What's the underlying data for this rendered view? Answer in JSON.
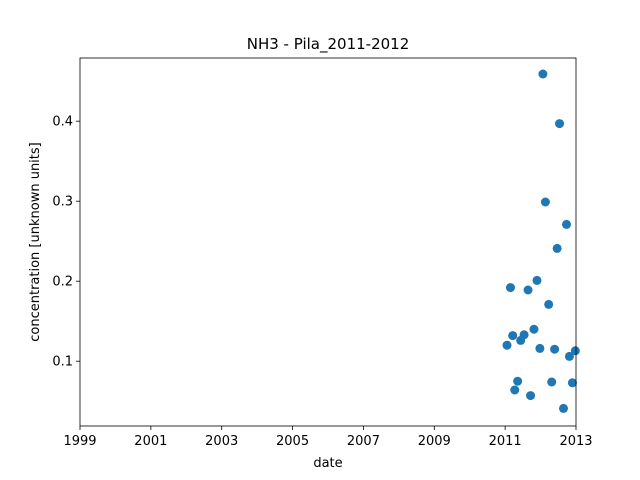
{
  "chart_data": {
    "type": "scatter",
    "title": "NH3 - Pila_2011-2012",
    "xlabel": "date",
    "ylabel": "concentration [unknown units]",
    "x_axis": "date (years)",
    "xlim": [
      1999.0,
      2013.0
    ],
    "ylim": [
      0.019,
      0.479
    ],
    "xticks": [
      "1999",
      "2001",
      "2003",
      "2005",
      "2007",
      "2009",
      "2011",
      "2013"
    ],
    "yticks": [
      "0.1",
      "0.2",
      "0.3",
      "0.4"
    ],
    "marker_color": "#1f77b4",
    "grid": false,
    "points": [
      {
        "x": "2011-01-20",
        "y": 0.12
      },
      {
        "x": "2011-02-25",
        "y": 0.192
      },
      {
        "x": "2011-03-20",
        "y": 0.132
      },
      {
        "x": "2011-04-10",
        "y": 0.064
      },
      {
        "x": "2011-05-10",
        "y": 0.075
      },
      {
        "x": "2011-06-10",
        "y": 0.126
      },
      {
        "x": "2011-07-15",
        "y": 0.133
      },
      {
        "x": "2011-08-25",
        "y": 0.189
      },
      {
        "x": "2011-09-20",
        "y": 0.057
      },
      {
        "x": "2011-10-25",
        "y": 0.14
      },
      {
        "x": "2011-11-25",
        "y": 0.201
      },
      {
        "x": "2011-12-25",
        "y": 0.116
      },
      {
        "x": "2012-01-25",
        "y": 0.459
      },
      {
        "x": "2012-02-20",
        "y": 0.299
      },
      {
        "x": "2012-03-25",
        "y": 0.171
      },
      {
        "x": "2012-04-25",
        "y": 0.074
      },
      {
        "x": "2012-05-25",
        "y": 0.115
      },
      {
        "x": "2012-06-20",
        "y": 0.241
      },
      {
        "x": "2012-07-15",
        "y": 0.397
      },
      {
        "x": "2012-08-25",
        "y": 0.041
      },
      {
        "x": "2012-09-25",
        "y": 0.271
      },
      {
        "x": "2012-10-25",
        "y": 0.106
      },
      {
        "x": "2012-11-25",
        "y": 0.073
      },
      {
        "x": "2012-12-25",
        "y": 0.113
      }
    ]
  }
}
